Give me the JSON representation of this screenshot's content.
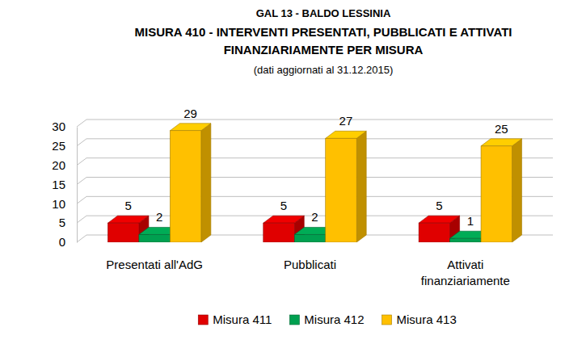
{
  "chart_data": {
    "type": "bar",
    "title": "GAL 13 - BALDO LESSINIA",
    "subtitle": "MISURA 410 - INTERVENTI PRESENTATI, PUBBLICATI E ATTIVATI FINANZIARIAMENTE PER MISURA",
    "annotations": [
      "(dati aggiornati al 31.12.2015)"
    ],
    "categories": [
      "Presentati all'AdG",
      "Pubblicati",
      "Attivati finanziariamente"
    ],
    "series": [
      {
        "name": "Misura 411",
        "color": "#e00000",
        "values": [
          5,
          5,
          5
        ]
      },
      {
        "name": "Misura 412",
        "color": "#00a050",
        "values": [
          2,
          2,
          1
        ]
      },
      {
        "name": "Misura 413",
        "color": "#ffc000",
        "values": [
          29,
          27,
          25
        ]
      }
    ],
    "ylim": [
      0,
      30
    ],
    "yticks": [
      0,
      5,
      10,
      15,
      20,
      25,
      30
    ],
    "grid": true,
    "legend": "bottom",
    "data_labels": true
  }
}
